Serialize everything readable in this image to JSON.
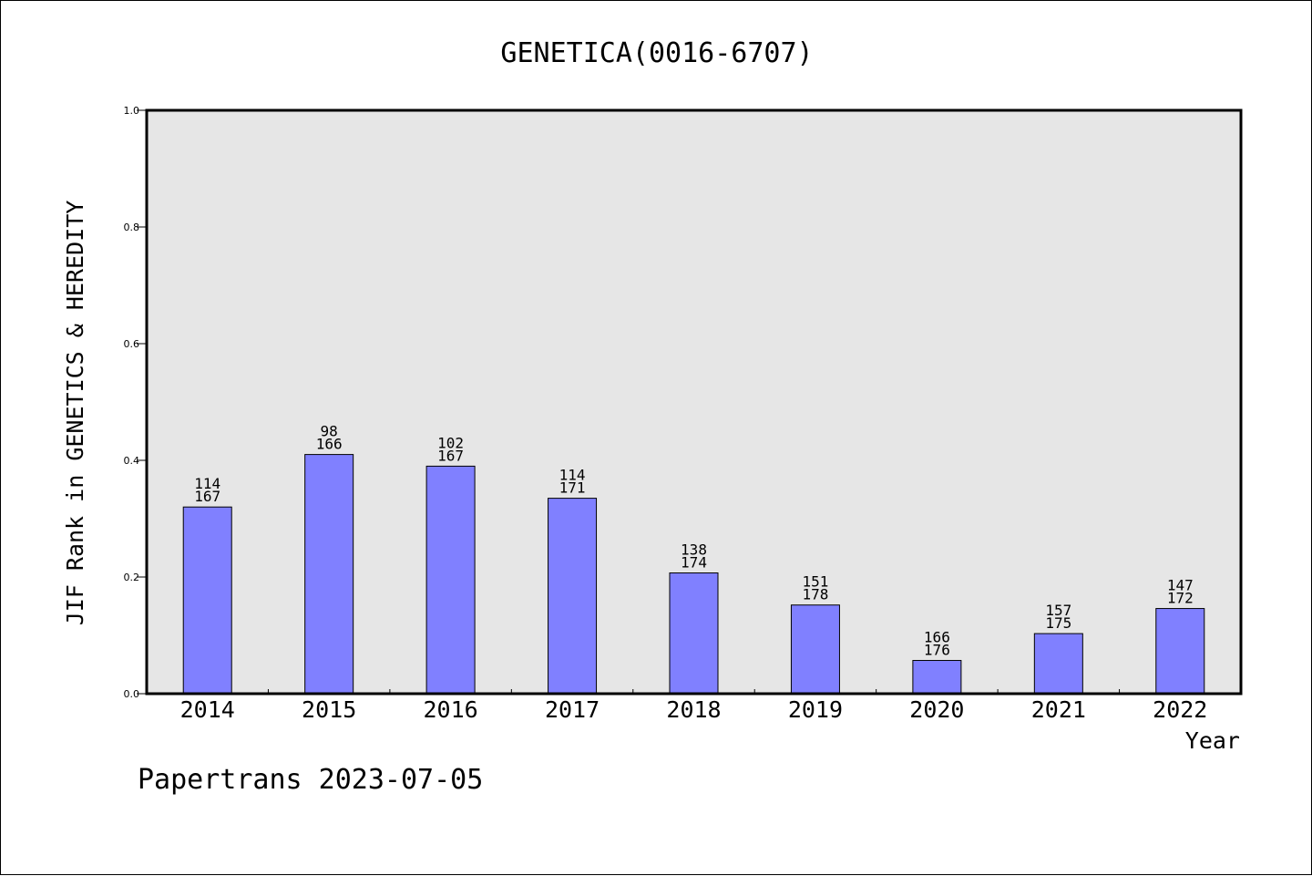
{
  "chart_data": {
    "type": "bar",
    "title": "GENETICA(0016-6707)",
    "xlabel": "Year",
    "ylabel": "JIF Rank in GENETICS & HEREDITY",
    "categories": [
      "2014",
      "2015",
      "2016",
      "2017",
      "2018",
      "2019",
      "2020",
      "2021",
      "2022"
    ],
    "values": [
      0.32,
      0.41,
      0.39,
      0.335,
      0.207,
      0.152,
      0.057,
      0.103,
      0.146
    ],
    "bar_labels": [
      [
        "114",
        "167"
      ],
      [
        "98",
        "166"
      ],
      [
        "102",
        "167"
      ],
      [
        "114",
        "171"
      ],
      [
        "138",
        "174"
      ],
      [
        "151",
        "178"
      ],
      [
        "166",
        "176"
      ],
      [
        "157",
        "175"
      ],
      [
        "147",
        "172"
      ]
    ],
    "ylim": [
      0,
      1
    ],
    "yticks": [
      "0.0",
      "0.2",
      "0.4",
      "0.6",
      "0.8",
      "1.0"
    ],
    "grid": false,
    "colors": {
      "bar": "#8080ff",
      "plot_background": "#e6e6e6",
      "axis": "#000000"
    }
  },
  "footer": "Papertrans 2023-07-05"
}
